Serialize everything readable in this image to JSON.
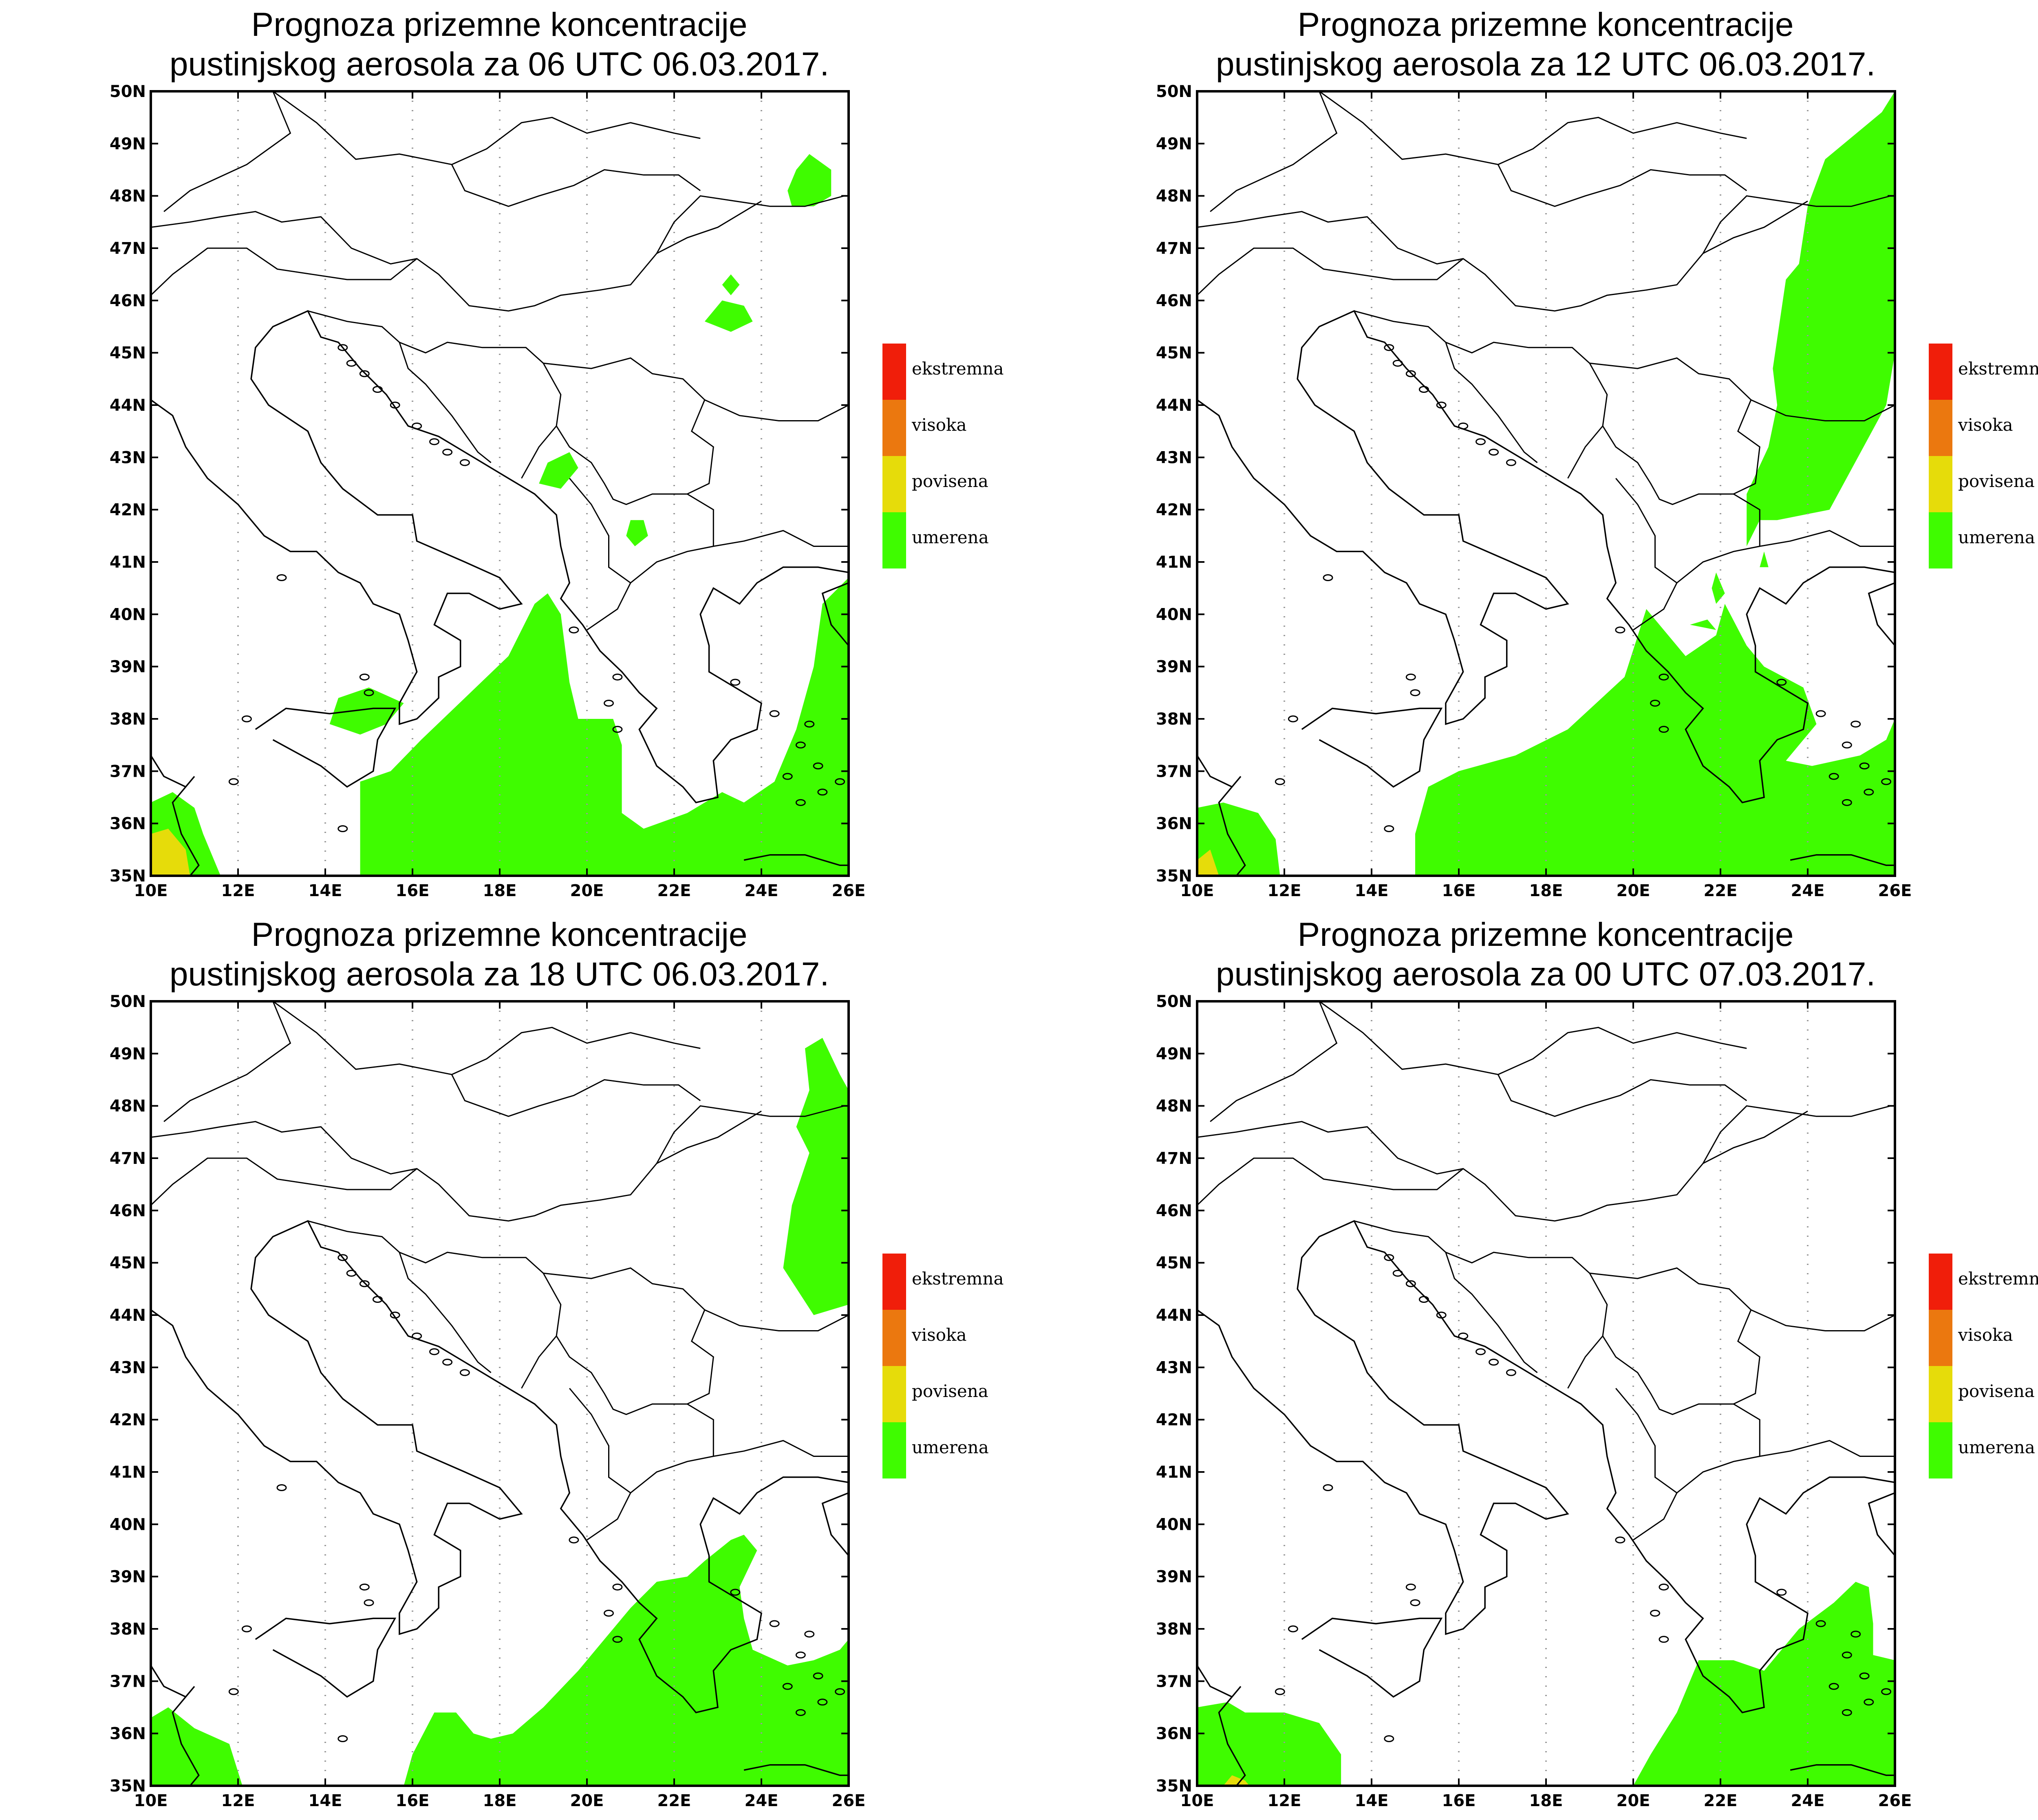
{
  "colors": {
    "umerena": "#3ffc00",
    "povisena": "#e6dc0a",
    "visoka": "#eb780f",
    "ekstremna": "#f01e0a",
    "border": "#000000",
    "grid": "#999999"
  },
  "legend": [
    {
      "label": "ekstremna",
      "color_key": "ekstremna"
    },
    {
      "label": "visoka",
      "color_key": "visoka"
    },
    {
      "label": "povisena",
      "color_key": "povisena"
    },
    {
      "label": "umerena",
      "color_key": "umerena"
    }
  ],
  "axes": {
    "lon_ticks": [
      "10E",
      "12E",
      "14E",
      "16E",
      "18E",
      "20E",
      "22E",
      "24E",
      "26E"
    ],
    "lat_ticks": [
      "35N",
      "36N",
      "37N",
      "38N",
      "39N",
      "40N",
      "41N",
      "42N",
      "43N",
      "44N",
      "45N",
      "46N",
      "47N",
      "48N",
      "49N",
      "50N"
    ],
    "lon_range": [
      10,
      26
    ],
    "lat_range": [
      35,
      50
    ]
  },
  "panels": [
    {
      "title_line1": "Prognoza prizemne koncentracije",
      "title_line2": "pustinjskog aerosola za 06 UTC 06.03.2017.",
      "areas": [
        {
          "level": "umerena",
          "pts": [
            [
              14.8,
              35
            ],
            [
              14.8,
              36.8
            ],
            [
              15.5,
              37
            ],
            [
              16.2,
              37.6
            ],
            [
              17.2,
              38.4
            ],
            [
              18.2,
              39.2
            ],
            [
              18.8,
              40.2
            ],
            [
              19.1,
              40.4
            ],
            [
              19.4,
              40
            ],
            [
              19.6,
              38.7
            ],
            [
              19.8,
              38
            ],
            [
              20.6,
              38
            ],
            [
              20.8,
              37.5
            ],
            [
              20.8,
              36.2
            ],
            [
              21.3,
              35.9
            ],
            [
              22.3,
              36.2
            ],
            [
              23.1,
              36.6
            ],
            [
              23.6,
              36.4
            ],
            [
              24.3,
              36.8
            ],
            [
              24.8,
              37.8
            ],
            [
              25.2,
              39
            ],
            [
              25.4,
              40.2
            ],
            [
              26,
              40.7
            ],
            [
              26,
              35
            ]
          ]
        },
        {
          "level": "umerena",
          "pts": [
            [
              10,
              35
            ],
            [
              10,
              36.4
            ],
            [
              10.5,
              36.6
            ],
            [
              11,
              36.3
            ],
            [
              11.2,
              35.8
            ],
            [
              11.6,
              35
            ]
          ]
        },
        {
          "level": "umerena",
          "pts": [
            [
              14.1,
              37.9
            ],
            [
              14.3,
              38.4
            ],
            [
              15,
              38.6
            ],
            [
              15.8,
              38.3
            ],
            [
              15.4,
              37.9
            ],
            [
              14.8,
              37.7
            ]
          ]
        },
        {
          "level": "umerena",
          "pts": [
            [
              18.9,
              42.5
            ],
            [
              19.1,
              42.9
            ],
            [
              19.6,
              43.1
            ],
            [
              19.8,
              42.8
            ],
            [
              19.4,
              42.4
            ]
          ]
        },
        {
          "level": "umerena",
          "pts": [
            [
              20.9,
              41.5
            ],
            [
              21,
              41.8
            ],
            [
              21.3,
              41.8
            ],
            [
              21.4,
              41.5
            ],
            [
              21.1,
              41.3
            ]
          ]
        },
        {
          "level": "umerena",
          "pts": [
            [
              22.7,
              45.6
            ],
            [
              23.3,
              45.4
            ],
            [
              23.8,
              45.6
            ],
            [
              23.6,
              45.9
            ],
            [
              23.1,
              46
            ]
          ]
        },
        {
          "level": "umerena",
          "pts": [
            [
              23.1,
              46.3
            ],
            [
              23.3,
              46.5
            ],
            [
              23.5,
              46.3
            ],
            [
              23.3,
              46.1
            ]
          ]
        },
        {
          "level": "umerena",
          "pts": [
            [
              24.6,
              48.1
            ],
            [
              24.8,
              48.5
            ],
            [
              25.1,
              48.8
            ],
            [
              25.6,
              48.5
            ],
            [
              25.6,
              48
            ],
            [
              25.2,
              47.8
            ],
            [
              24.7,
              47.8
            ]
          ]
        },
        {
          "level": "povisena",
          "pts": [
            [
              10,
              35
            ],
            [
              10,
              35.8
            ],
            [
              10.4,
              35.9
            ],
            [
              10.8,
              35.5
            ],
            [
              10.9,
              35
            ]
          ]
        }
      ]
    },
    {
      "title_line1": "Prognoza prizemne koncentracije",
      "title_line2": "pustinjskog aerosola za 12 UTC 06.03.2017.",
      "areas": [
        {
          "level": "umerena",
          "pts": [
            [
              15,
              35
            ],
            [
              15,
              35.8
            ],
            [
              15.3,
              36.7
            ],
            [
              16,
              37
            ],
            [
              17.3,
              37.3
            ],
            [
              18.5,
              37.8
            ],
            [
              19.8,
              38.8
            ],
            [
              20.3,
              40.1
            ],
            [
              21.2,
              39.2
            ],
            [
              21.9,
              39.6
            ],
            [
              22.1,
              40.2
            ],
            [
              22.6,
              39.4
            ],
            [
              23,
              39
            ],
            [
              23.9,
              38.6
            ],
            [
              24.2,
              37.9
            ],
            [
              23.5,
              37.2
            ],
            [
              24.1,
              37.1
            ],
            [
              25.2,
              37.3
            ],
            [
              25.8,
              37.6
            ],
            [
              26,
              38
            ],
            [
              26,
              35
            ]
          ]
        },
        {
          "level": "umerena",
          "pts": [
            [
              10,
              35
            ],
            [
              10,
              36.3
            ],
            [
              10.6,
              36.4
            ],
            [
              11.4,
              36.2
            ],
            [
              11.8,
              35.7
            ],
            [
              11.9,
              35
            ]
          ]
        },
        {
          "level": "povisena",
          "pts": [
            [
              10,
              35
            ],
            [
              10,
              35.3
            ],
            [
              10.3,
              35.5
            ],
            [
              10.5,
              35
            ]
          ]
        },
        {
          "level": "umerena",
          "pts": [
            [
              22.6,
              41.3
            ],
            [
              22.9,
              41.8
            ],
            [
              23.3,
              41.8
            ],
            [
              24.5,
              42
            ],
            [
              25.8,
              44
            ],
            [
              26,
              45
            ],
            [
              26,
              50
            ],
            [
              25.7,
              49.6
            ],
            [
              24.4,
              48.7
            ],
            [
              24,
              47.8
            ],
            [
              23.8,
              46.7
            ],
            [
              23.5,
              46.4
            ],
            [
              23.2,
              44.7
            ],
            [
              23.3,
              44
            ],
            [
              23.1,
              43.2
            ],
            [
              22.6,
              42.3
            ]
          ]
        },
        {
          "level": "umerena",
          "pts": [
            [
              21.8,
              40.5
            ],
            [
              21.9,
              40.8
            ],
            [
              22.1,
              40.4
            ],
            [
              21.9,
              40.2
            ]
          ]
        },
        {
          "level": "umerena",
          "pts": [
            [
              22.9,
              40.9
            ],
            [
              23,
              41.2
            ],
            [
              23.1,
              40.9
            ]
          ]
        },
        {
          "level": "umerena",
          "pts": [
            [
              21.3,
              39.8
            ],
            [
              21.7,
              39.9
            ],
            [
              21.9,
              39.7
            ]
          ]
        }
      ]
    },
    {
      "title_line1": "Prognoza prizemne koncentracije",
      "title_line2": "pustinjskog aerosola za 18 UTC 06.03.2017.",
      "areas": [
        {
          "level": "umerena",
          "pts": [
            [
              15.8,
              35
            ],
            [
              16,
              35.6
            ],
            [
              16.5,
              36.4
            ],
            [
              17,
              36.4
            ],
            [
              17.4,
              36
            ],
            [
              17.8,
              35.9
            ],
            [
              18.3,
              36
            ],
            [
              19,
              36.5
            ],
            [
              19.8,
              37.2
            ],
            [
              20.3,
              37.7
            ],
            [
              21,
              38.4
            ],
            [
              21.6,
              38.9
            ],
            [
              22.3,
              39
            ],
            [
              22.7,
              39.3
            ],
            [
              23.3,
              39.7
            ],
            [
              23.6,
              39.8
            ],
            [
              23.9,
              39.5
            ],
            [
              23.5,
              38.8
            ],
            [
              23.6,
              38.2
            ],
            [
              23.8,
              37.6
            ],
            [
              24.6,
              37.3
            ],
            [
              25.2,
              37.4
            ],
            [
              25.8,
              37.6
            ],
            [
              26,
              37.8
            ],
            [
              26,
              35
            ]
          ]
        },
        {
          "level": "umerena",
          "pts": [
            [
              10,
              35
            ],
            [
              10,
              36.3
            ],
            [
              10.4,
              36.5
            ],
            [
              11,
              36.1
            ],
            [
              11.8,
              35.8
            ],
            [
              12.1,
              35
            ]
          ]
        },
        {
          "level": "umerena",
          "pts": [
            [
              25,
              49.1
            ],
            [
              25.4,
              49.3
            ],
            [
              25.8,
              48.6
            ],
            [
              26,
              48.3
            ],
            [
              26,
              44.2
            ],
            [
              25.2,
              44
            ],
            [
              24.5,
              44.9
            ],
            [
              24.7,
              46.1
            ],
            [
              25.1,
              47.1
            ],
            [
              24.8,
              47.6
            ],
            [
              25.1,
              48.3
            ]
          ]
        }
      ]
    },
    {
      "title_line1": "Prognoza prizemne koncentracije",
      "title_line2": "pustinjskog aerosola za 00 UTC 07.03.2017.",
      "areas": [
        {
          "level": "umerena",
          "pts": [
            [
              20,
              35
            ],
            [
              20.4,
              35.6
            ],
            [
              21,
              36.4
            ],
            [
              21.5,
              37.4
            ],
            [
              22.3,
              37.4
            ],
            [
              23,
              37.2
            ],
            [
              23.8,
              38
            ],
            [
              24.6,
              38.5
            ],
            [
              25.1,
              38.9
            ],
            [
              25.4,
              38.8
            ],
            [
              25.5,
              38.1
            ],
            [
              25.5,
              37.5
            ],
            [
              26,
              37.4
            ],
            [
              26,
              35
            ]
          ]
        },
        {
          "level": "umerena",
          "pts": [
            [
              10,
              35
            ],
            [
              10,
              36.5
            ],
            [
              10.7,
              36.6
            ],
            [
              11.1,
              36.4
            ],
            [
              12,
              36.4
            ],
            [
              12.8,
              36.2
            ],
            [
              13.3,
              35.6
            ],
            [
              13.3,
              35
            ]
          ]
        },
        {
          "level": "povisena",
          "pts": [
            [
              10.6,
              35
            ],
            [
              10.8,
              35.2
            ],
            [
              11.1,
              35.1
            ],
            [
              11.2,
              35
            ]
          ]
        }
      ]
    }
  ]
}
